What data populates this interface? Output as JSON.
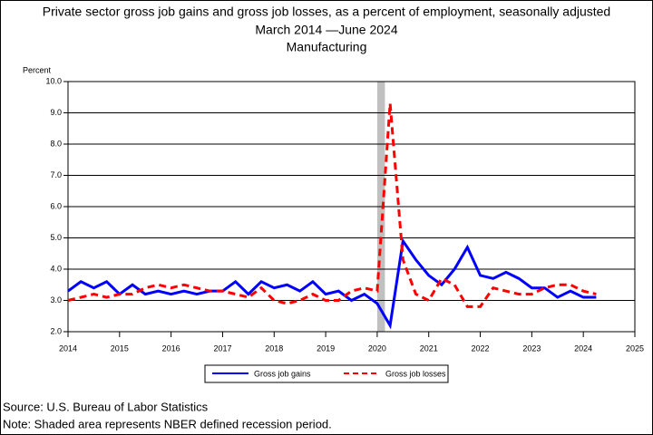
{
  "chart_data": {
    "type": "line",
    "title": "Private sector gross job gains and gross job losses, as a percent of employment, seasonally adjusted",
    "subtitle": "March 2014 —June 2024",
    "subtitle2": "Manufacturing",
    "y_label": "Percent",
    "x": [
      2014,
      2014.25,
      2014.5,
      2014.75,
      2015,
      2015.25,
      2015.5,
      2015.75,
      2016,
      2016.25,
      2016.5,
      2016.75,
      2017,
      2017.25,
      2017.5,
      2017.75,
      2018,
      2018.25,
      2018.5,
      2018.75,
      2019,
      2019.25,
      2019.5,
      2019.75,
      2020,
      2020.25,
      2020.5,
      2020.75,
      2021,
      2021.25,
      2021.5,
      2021.75,
      2022,
      2022.25,
      2022.5,
      2022.75,
      2023,
      2023.25,
      2023.5,
      2023.75,
      2024,
      2024.25
    ],
    "series": [
      {
        "name": "Gross job gains",
        "color": "#0000ff",
        "dash": false,
        "values": [
          3.3,
          3.6,
          3.4,
          3.6,
          3.2,
          3.5,
          3.2,
          3.3,
          3.2,
          3.3,
          3.2,
          3.3,
          3.3,
          3.6,
          3.2,
          3.6,
          3.4,
          3.5,
          3.3,
          3.6,
          3.2,
          3.3,
          3.0,
          3.2,
          2.9,
          2.2,
          4.9,
          4.3,
          3.8,
          3.5,
          4.0,
          4.7,
          3.8,
          3.7,
          3.9,
          3.7,
          3.4,
          3.4,
          3.1,
          3.3,
          3.1,
          3.1
        ]
      },
      {
        "name": "Gross job losses",
        "color": "#ff0000",
        "dash": true,
        "values": [
          3.0,
          3.1,
          3.2,
          3.1,
          3.2,
          3.2,
          3.4,
          3.5,
          3.4,
          3.5,
          3.4,
          3.3,
          3.3,
          3.2,
          3.1,
          3.4,
          3.0,
          2.9,
          3.0,
          3.2,
          3.0,
          3.0,
          3.3,
          3.4,
          3.3,
          9.3,
          4.3,
          3.2,
          3.0,
          3.7,
          3.5,
          2.8,
          2.8,
          3.4,
          3.3,
          3.2,
          3.2,
          3.4,
          3.5,
          3.5,
          3.3,
          3.2
        ]
      }
    ],
    "recession": [
      2020,
      2020.15
    ],
    "xlim": [
      2014,
      2025
    ],
    "xticks": [
      2014,
      2015,
      2016,
      2017,
      2018,
      2019,
      2020,
      2021,
      2022,
      2023,
      2024,
      2025
    ],
    "ylim": [
      2,
      10
    ],
    "yticks": [
      {
        "value": 2,
        "label": "2.0"
      },
      {
        "value": 3,
        "label": "3.0"
      },
      {
        "value": 4,
        "label": "4.0"
      },
      {
        "value": 5,
        "label": "5.0"
      },
      {
        "value": 6,
        "label": "6.0"
      },
      {
        "value": 7,
        "label": "7.0"
      },
      {
        "value": 8,
        "label": "8.0"
      },
      {
        "value": 9,
        "label": "9.0"
      },
      {
        "value": 10,
        "label": "10.0"
      }
    ],
    "grid": true
  },
  "footer": {
    "source": "Source: U.S. Bureau of Labor Statistics",
    "note": "Note: Shaded area represents NBER defined recession period."
  }
}
